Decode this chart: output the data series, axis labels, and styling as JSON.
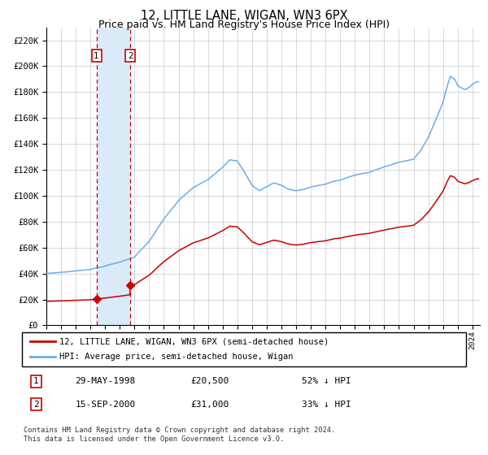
{
  "title": "12, LITTLE LANE, WIGAN, WN3 6PX",
  "subtitle": "Price paid vs. HM Land Registry's House Price Index (HPI)",
  "xlim_min": 1995,
  "xlim_max": 2024.5,
  "ylim_min": 0,
  "ylim_max": 230000,
  "yticks": [
    0,
    20000,
    40000,
    60000,
    80000,
    100000,
    120000,
    140000,
    160000,
    180000,
    200000,
    220000
  ],
  "ytick_labels": [
    "£0",
    "£20K",
    "£40K",
    "£60K",
    "£80K",
    "£100K",
    "£120K",
    "£140K",
    "£160K",
    "£180K",
    "£200K",
    "£220K"
  ],
  "sale1_date": 1998.41,
  "sale1_price": 20500,
  "sale2_date": 2000.71,
  "sale2_price": 31000,
  "hpi_line_color": "#6aaee8",
  "price_line_color": "#cc0000",
  "sale_marker_color": "#cc0000",
  "shade_color": "#daeaf8",
  "vline_color": "#cc0000",
  "grid_color": "#c8c8c8",
  "background_color": "#ffffff",
  "legend_entry1": "12, LITTLE LANE, WIGAN, WN3 6PX (semi-detached house)",
  "legend_entry2": "HPI: Average price, semi-detached house, Wigan",
  "table_row1": [
    "1",
    "29-MAY-1998",
    "£20,500",
    "52% ↓ HPI"
  ],
  "table_row2": [
    "2",
    "15-SEP-2000",
    "£31,000",
    "33% ↓ HPI"
  ],
  "footnote": "Contains HM Land Registry data © Crown copyright and database right 2024.\nThis data is licensed under the Open Government Licence v3.0."
}
